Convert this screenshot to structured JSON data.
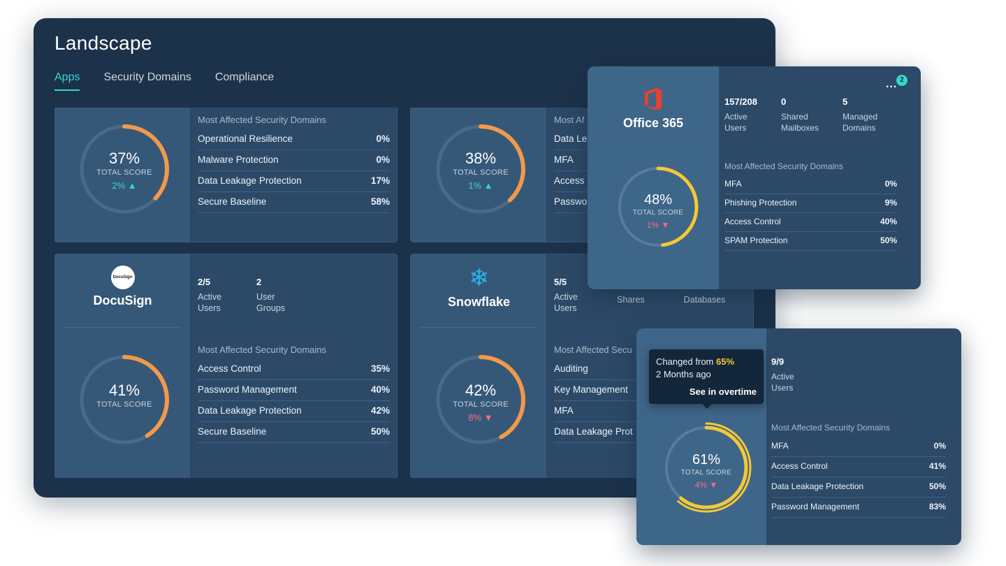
{
  "window": {
    "title": "Landscape"
  },
  "tabs": [
    {
      "label": "Apps"
    },
    {
      "label": "Security Domains"
    },
    {
      "label": "Compliance"
    }
  ],
  "common": {
    "total_score": "TOTAL SCORE",
    "mad_title": "Most Affected Security Domains"
  },
  "colors": {
    "accent": "#35d6d0",
    "orange": "#f2994a",
    "yellow": "#f5c836",
    "down": "#ff6b81"
  },
  "cards": {
    "c1": {
      "score": "37%",
      "score_value": 37,
      "delta": "2%",
      "delta_dir": "up",
      "domains": [
        {
          "name": "Operational Resilience",
          "value": "0%"
        },
        {
          "name": "Malware Protection",
          "value": "0%"
        },
        {
          "name": "Data Leakage Protection",
          "value": "17%"
        },
        {
          "name": "Secure Baseline",
          "value": "58%"
        }
      ]
    },
    "c2": {
      "score": "38%",
      "score_value": 38,
      "delta": "1%",
      "delta_dir": "up",
      "domains": [
        {
          "name": "Data Le"
        },
        {
          "name": "MFA"
        },
        {
          "name": "Access C"
        },
        {
          "name": "Passwo"
        }
      ],
      "mad_partial": "Most Af"
    },
    "docusign": {
      "name": "DocuSign",
      "logo_text": "DocuSign",
      "stats": [
        {
          "n": "2/5",
          "t1": "Active",
          "t2": "Users"
        },
        {
          "n": "2",
          "t1": "User",
          "t2": "Groups"
        }
      ],
      "score": "41%",
      "score_value": 41,
      "domains": [
        {
          "name": "Access Control",
          "value": "35%"
        },
        {
          "name": "Password Management",
          "value": "40%"
        },
        {
          "name": "Data Leakage Protection",
          "value": "42%"
        },
        {
          "name": "Secure Baseline",
          "value": "50%"
        }
      ]
    },
    "snowflake": {
      "name": "Snowflake",
      "stats": [
        {
          "n": "5/5",
          "t1": "Active",
          "t2": "Users"
        },
        {
          "n": "",
          "t1": "Shares",
          "t2": ""
        },
        {
          "n": "",
          "t1": "Databases",
          "t2": ""
        }
      ],
      "mad_partial": "Most Affected Secu",
      "score": "42%",
      "score_value": 42,
      "delta": "8%",
      "delta_dir": "down",
      "domains": [
        {
          "name": "Auditing"
        },
        {
          "name": "Key Management"
        },
        {
          "name": "MFA"
        },
        {
          "name": "Data Leakage Prot"
        }
      ]
    }
  },
  "office365": {
    "name": "Office 365",
    "menu": "...",
    "badge": "2",
    "stats": [
      {
        "n": "157/208",
        "t1": "Active",
        "t2": "Users"
      },
      {
        "n": "0",
        "t1": "Shared",
        "t2": "Mailboxes"
      },
      {
        "n": "5",
        "t1": "Managed",
        "t2": "Domains"
      }
    ],
    "score": "48%",
    "score_value": 48,
    "delta": "1%",
    "delta_dir": "down",
    "domains": [
      {
        "name": "MFA",
        "value": "0%"
      },
      {
        "name": "Phishing Protection",
        "value": "9%"
      },
      {
        "name": "Access Control",
        "value": "40%"
      },
      {
        "name": "SPAM Protection",
        "value": "50%"
      }
    ]
  },
  "overtime_card": {
    "stats": [
      {
        "n": "9/9",
        "t1": "Active",
        "t2": "Users"
      }
    ],
    "score": "61%",
    "score_value": 61,
    "delta": "4%",
    "delta_dir": "down",
    "tooltip": {
      "prefix": "Changed from ",
      "from": "65%",
      "when": "2 Months ago",
      "link": "See in overtime"
    },
    "domains": [
      {
        "name": "MFA",
        "value": "0%"
      },
      {
        "name": "Access Control",
        "value": "41%"
      },
      {
        "name": "Data Leakage Protection",
        "value": "50%"
      },
      {
        "name": "Password Management",
        "value": "83%"
      }
    ]
  }
}
